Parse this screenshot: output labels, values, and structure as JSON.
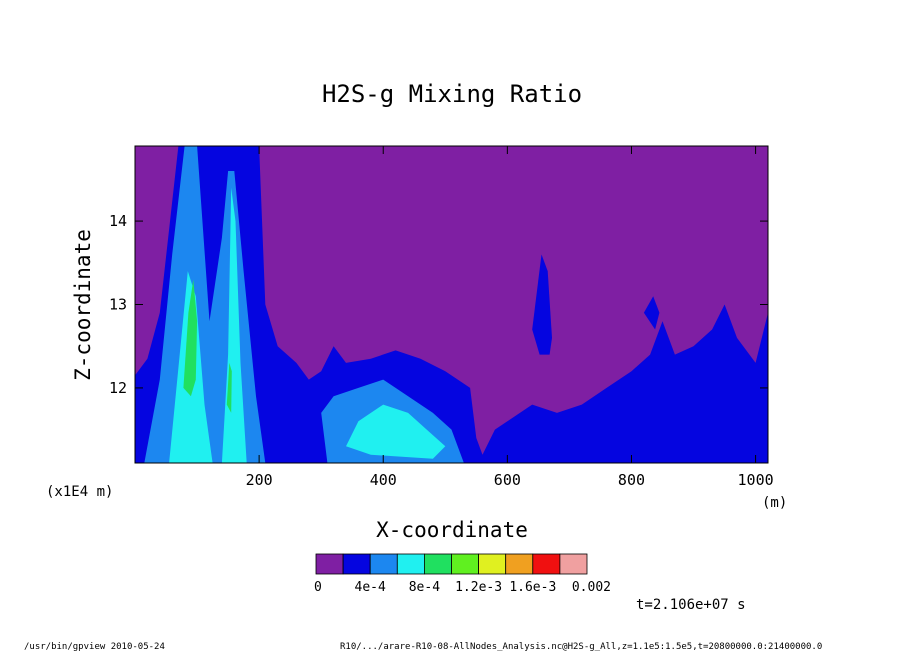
{
  "chart_data": {
    "type": "heatmap",
    "title": "H2S-g Mixing Ratio",
    "xlabel": "X-coordinate",
    "ylabel": "Z-coordinate",
    "x_unit": "(m)",
    "y_unit": "(x1E4 m)",
    "xlim": [
      0,
      1020
    ],
    "ylim": [
      11.1,
      14.9
    ],
    "x_ticks": [
      200,
      400,
      600,
      800,
      1000
    ],
    "x_tick_labels": [
      "200",
      "400",
      "600",
      "800",
      "1000"
    ],
    "y_ticks": [
      12,
      13,
      14
    ],
    "y_tick_labels": [
      "12",
      "13",
      "14"
    ],
    "colorbar": {
      "colors": [
        "#7f1fa3",
        "#0505e0",
        "#1c87f0",
        "#20f0f0",
        "#20e060",
        "#60f020",
        "#e0f020",
        "#f0a020",
        "#f01010",
        "#f0a0a0"
      ],
      "labels": [
        "0",
        "4e-4",
        "8e-4",
        "1.2e-3",
        "1.6e-3",
        "0.002"
      ]
    },
    "time_label": "t=2.106e+07 s",
    "interface_profile": [
      [
        0,
        12.15
      ],
      [
        20,
        12.35
      ],
      [
        40,
        12.9
      ],
      [
        70,
        14.9
      ],
      [
        200,
        14.9
      ],
      [
        210,
        13.0
      ],
      [
        230,
        12.5
      ],
      [
        260,
        12.3
      ],
      [
        280,
        12.1
      ],
      [
        300,
        12.2
      ],
      [
        320,
        12.5
      ],
      [
        340,
        12.3
      ],
      [
        380,
        12.35
      ],
      [
        420,
        12.45
      ],
      [
        460,
        12.35
      ],
      [
        500,
        12.2
      ],
      [
        540,
        12.0
      ],
      [
        550,
        11.4
      ],
      [
        560,
        11.2
      ],
      [
        580,
        11.5
      ],
      [
        600,
        11.6
      ],
      [
        640,
        11.8
      ],
      [
        680,
        11.7
      ],
      [
        720,
        11.8
      ],
      [
        760,
        12.0
      ],
      [
        800,
        12.2
      ],
      [
        830,
        12.4
      ],
      [
        850,
        12.8
      ],
      [
        870,
        12.4
      ],
      [
        900,
        12.5
      ],
      [
        930,
        12.7
      ],
      [
        950,
        13.0
      ],
      [
        970,
        12.6
      ],
      [
        1000,
        12.3
      ],
      [
        1020,
        12.9
      ]
    ],
    "regions": [
      {
        "level": 2,
        "poly": [
          [
            15,
            11.1
          ],
          [
            40,
            12.1
          ],
          [
            60,
            13.6
          ],
          [
            80,
            14.9
          ],
          [
            100,
            14.9
          ],
          [
            120,
            12.8
          ],
          [
            140,
            13.8
          ],
          [
            150,
            14.6
          ],
          [
            160,
            14.6
          ],
          [
            175,
            13.4
          ],
          [
            195,
            11.9
          ],
          [
            210,
            11.1
          ]
        ]
      },
      {
        "level": 3,
        "poly": [
          [
            55,
            11.1
          ],
          [
            72,
            12.4
          ],
          [
            85,
            13.4
          ],
          [
            98,
            13.1
          ],
          [
            112,
            11.8
          ],
          [
            125,
            11.1
          ]
        ]
      },
      {
        "level": 3,
        "poly": [
          [
            140,
            11.1
          ],
          [
            150,
            12.4
          ],
          [
            155,
            14.4
          ],
          [
            162,
            14.0
          ],
          [
            170,
            12.3
          ],
          [
            180,
            11.1
          ]
        ]
      },
      {
        "level": 4,
        "poly": [
          [
            78,
            12.0
          ],
          [
            86,
            12.9
          ],
          [
            94,
            13.3
          ],
          [
            100,
            12.8
          ],
          [
            98,
            12.1
          ],
          [
            90,
            11.9
          ]
        ]
      },
      {
        "level": 4,
        "poly": [
          [
            148,
            11.8
          ],
          [
            152,
            12.3
          ],
          [
            156,
            12.2
          ],
          [
            155,
            11.7
          ]
        ]
      },
      {
        "level": 2,
        "poly": [
          [
            310,
            11.1
          ],
          [
            300,
            11.7
          ],
          [
            320,
            11.9
          ],
          [
            360,
            12.0
          ],
          [
            400,
            12.1
          ],
          [
            440,
            11.9
          ],
          [
            480,
            11.7
          ],
          [
            510,
            11.5
          ],
          [
            530,
            11.1
          ]
        ]
      },
      {
        "level": 3,
        "poly": [
          [
            340,
            11.3
          ],
          [
            360,
            11.6
          ],
          [
            400,
            11.8
          ],
          [
            440,
            11.7
          ],
          [
            470,
            11.5
          ],
          [
            500,
            11.3
          ],
          [
            480,
            11.15
          ],
          [
            380,
            11.2
          ]
        ]
      }
    ],
    "upper_patches": [
      {
        "level": 1,
        "poly": [
          [
            640,
            12.7
          ],
          [
            655,
            13.6
          ],
          [
            665,
            13.4
          ],
          [
            672,
            12.6
          ],
          [
            668,
            12.4
          ],
          [
            652,
            12.4
          ]
        ]
      },
      {
        "level": 1,
        "poly": [
          [
            820,
            12.9
          ],
          [
            835,
            13.1
          ],
          [
            845,
            12.9
          ],
          [
            838,
            12.7
          ]
        ]
      }
    ]
  },
  "footer": {
    "left": "/usr/bin/gpview   2010-05-24",
    "right": "R10/.../arare-R10-08-AllNodes_Analysis.nc@H2S-g_All,z=1.1e5:1.5e5,t=20800000.0:21400000.0"
  }
}
